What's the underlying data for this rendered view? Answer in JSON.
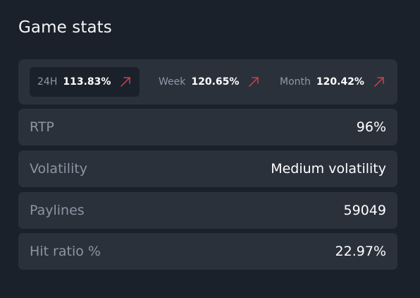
{
  "panel": {
    "title": "Game stats"
  },
  "periods": [
    {
      "label": "24H",
      "value": "113.83%",
      "trend_icon": "arrow-up-right-icon",
      "active": true
    },
    {
      "label": "Week",
      "value": "120.65%",
      "trend_icon": "arrow-up-right-icon",
      "active": false
    },
    {
      "label": "Month",
      "value": "120.42%",
      "trend_icon": "arrow-up-right-icon",
      "active": false
    }
  ],
  "stats": [
    {
      "label": "RTP",
      "value": "96%"
    },
    {
      "label": "Volatility",
      "value": "Medium volatility"
    },
    {
      "label": "Paylines",
      "value": "59049"
    },
    {
      "label": "Hit ratio %",
      "value": "22.97%"
    }
  ],
  "colors": {
    "background": "#1b212a",
    "card": "#2b313b",
    "trend_arrow": "#c9444c"
  }
}
